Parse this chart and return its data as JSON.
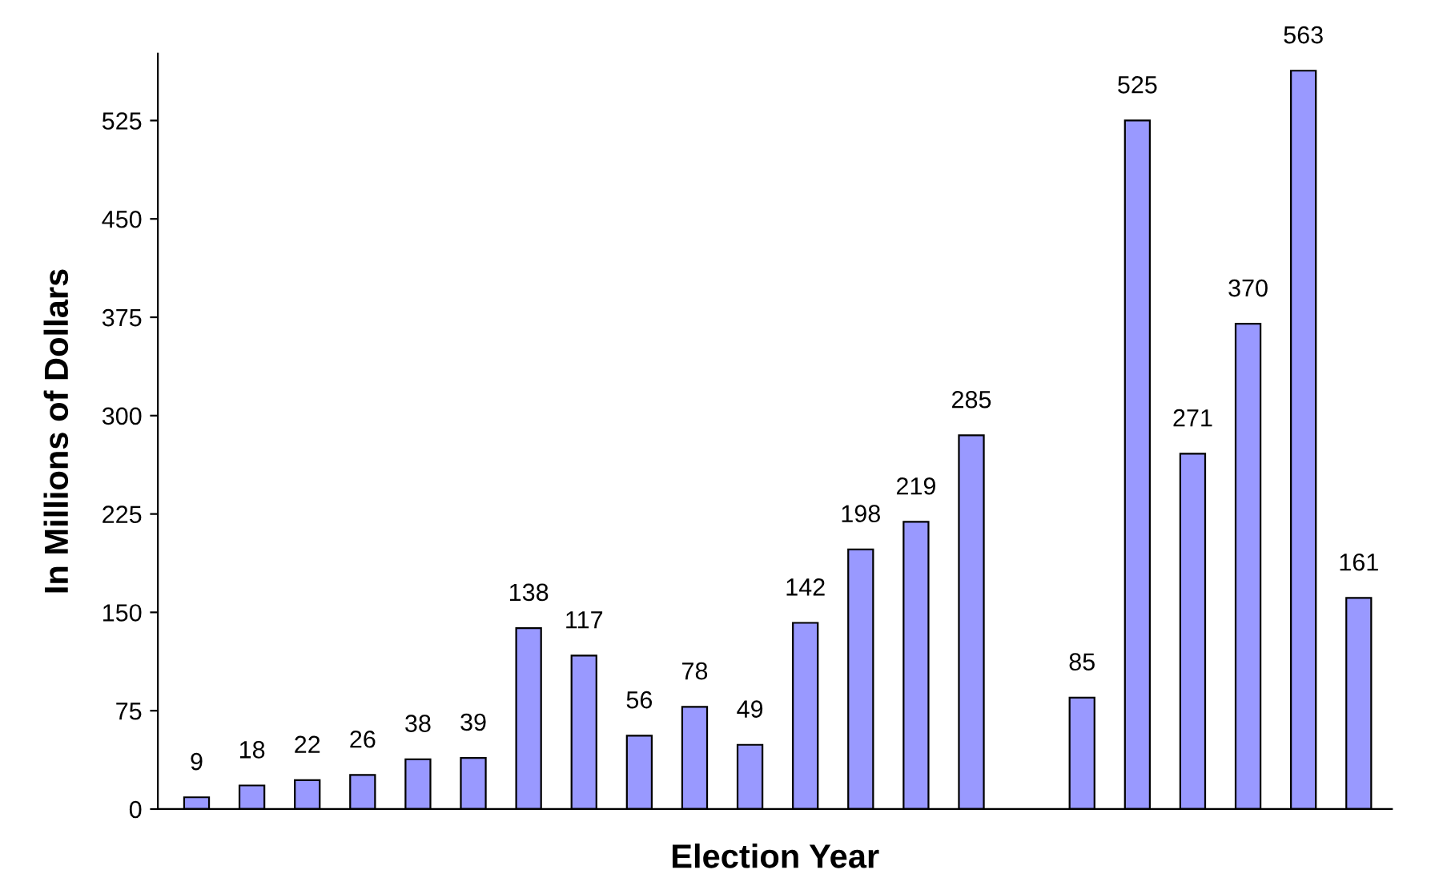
{
  "chart_data": {
    "type": "bar",
    "xlabel": "Election Year",
    "ylabel": "In Millions of Dollars",
    "categories": [
      null,
      null,
      null,
      null,
      null,
      null,
      null,
      null,
      null,
      null,
      null,
      null,
      null,
      null,
      null,
      null,
      null,
      null,
      null,
      null,
      null,
      null
    ],
    "values": [
      9,
      18,
      22,
      26,
      38,
      39,
      138,
      117,
      56,
      78,
      49,
      142,
      198,
      219,
      285,
      null,
      85,
      525,
      271,
      370,
      563,
      161
    ],
    "value_labels": [
      "9",
      "18",
      "22",
      "26",
      "38",
      "39",
      "138",
      "117",
      "56",
      "78",
      "49",
      "142",
      "198",
      "219",
      "285",
      null,
      "85",
      "525",
      "271",
      "370",
      "563",
      "161"
    ],
    "color": "#9999ff",
    "ylim": [
      0,
      576
    ],
    "yticks": [
      0,
      75,
      150,
      225,
      300,
      375,
      450,
      525
    ],
    "grid": false,
    "legend": false
  }
}
